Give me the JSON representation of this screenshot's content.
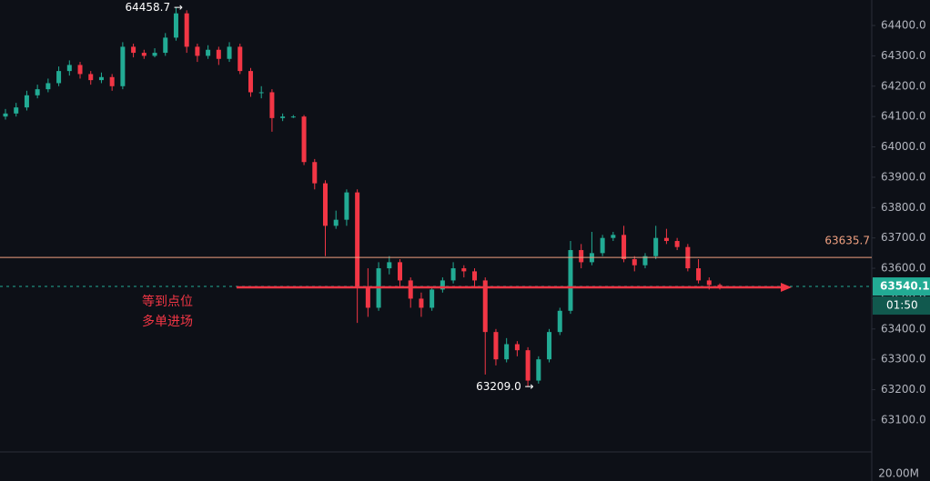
{
  "chart_data": {
    "type": "candlestick",
    "up_color": "#22ab94",
    "down_color": "#f23645",
    "grid": false,
    "ylim": [
      62995,
      64484
    ],
    "yticks": [
      {
        "value": 64400,
        "label": "64400.0"
      },
      {
        "value": 64300,
        "label": "64300.0"
      },
      {
        "value": 64200,
        "label": "64200.0"
      },
      {
        "value": 64100,
        "label": "64100.0"
      },
      {
        "value": 64000,
        "label": "64000.0"
      },
      {
        "value": 63900,
        "label": "63900.0"
      },
      {
        "value": 63800,
        "label": "63800.0"
      },
      {
        "value": 63700,
        "label": "63700.0"
      },
      {
        "value": 63600,
        "label": "63600.0"
      },
      {
        "value": 63500,
        "label": "63500.0"
      },
      {
        "value": 63400,
        "label": "63400.0"
      },
      {
        "value": 63300,
        "label": "63300.0"
      },
      {
        "value": 63200,
        "label": "63200.0"
      },
      {
        "value": 63100,
        "label": "63100.0"
      }
    ],
    "candles": [
      [
        64100,
        64125,
        64090,
        64110
      ],
      [
        64110,
        64145,
        64100,
        64130
      ],
      [
        64130,
        64185,
        64120,
        64170
      ],
      [
        64170,
        64205,
        64160,
        64190
      ],
      [
        64190,
        64225,
        64180,
        64210
      ],
      [
        64210,
        64265,
        64200,
        64250
      ],
      [
        64250,
        64285,
        64235,
        64270
      ],
      [
        64270,
        64280,
        64225,
        64240
      ],
      [
        64240,
        64250,
        64205,
        64220
      ],
      [
        64220,
        64245,
        64210,
        64230
      ],
      [
        64230,
        64240,
        64185,
        64200
      ],
      [
        64200,
        64345,
        64190,
        64330
      ],
      [
        64330,
        64340,
        64295,
        64310
      ],
      [
        64310,
        64320,
        64290,
        64300
      ],
      [
        64300,
        64325,
        64295,
        64310
      ],
      [
        64310,
        64375,
        64300,
        64360
      ],
      [
        64360,
        64458.7,
        64350,
        64440
      ],
      [
        64440,
        64450,
        64310,
        64330
      ],
      [
        64330,
        64340,
        64280,
        64300
      ],
      [
        64300,
        64335,
        64290,
        64320
      ],
      [
        64320,
        64330,
        64270,
        64290
      ],
      [
        64290,
        64345,
        64280,
        64330
      ],
      [
        64330,
        64340,
        64240,
        64250
      ],
      [
        64250,
        64260,
        64165,
        64180
      ],
      [
        64180,
        64200,
        64160,
        64180
      ],
      [
        64180,
        64190,
        64050,
        64095
      ],
      [
        64095,
        64110,
        64085,
        64100
      ],
      [
        64100,
        64105,
        64095,
        64100
      ],
      [
        64100,
        64105,
        63940,
        63950
      ],
      [
        63950,
        63960,
        63860,
        63880
      ],
      [
        63880,
        63890,
        63640,
        63740
      ],
      [
        63740,
        63790,
        63730,
        63760
      ],
      [
        63760,
        63860,
        63740,
        63850
      ],
      [
        63850,
        63860,
        63420,
        63540
      ],
      [
        63540,
        63600,
        63440,
        63470
      ],
      [
        63470,
        63620,
        63460,
        63600
      ],
      [
        63600,
        63640,
        63580,
        63620
      ],
      [
        63620,
        63630,
        63540,
        63560
      ],
      [
        63560,
        63570,
        63470,
        63500
      ],
      [
        63500,
        63520,
        63440,
        63470
      ],
      [
        63470,
        63540,
        63460,
        63530
      ],
      [
        63530,
        63570,
        63520,
        63560
      ],
      [
        63560,
        63620,
        63550,
        63600
      ],
      [
        63600,
        63610,
        63570,
        63590
      ],
      [
        63590,
        63600,
        63540,
        63560
      ],
      [
        63560,
        63570,
        63250,
        63390
      ],
      [
        63390,
        63400,
        63280,
        63300
      ],
      [
        63300,
        63370,
        63290,
        63350
      ],
      [
        63350,
        63360,
        63310,
        63330
      ],
      [
        63330,
        63340,
        63209,
        63230
      ],
      [
        63230,
        63310,
        63220,
        63300
      ],
      [
        63300,
        63400,
        63290,
        63390
      ],
      [
        63390,
        63470,
        63380,
        63460
      ],
      [
        63460,
        63690,
        63450,
        63660
      ],
      [
        63660,
        63680,
        63600,
        63620
      ],
      [
        63620,
        63720,
        63610,
        63650
      ],
      [
        63650,
        63710,
        63640,
        63700
      ],
      [
        63700,
        63720,
        63690,
        63710
      ],
      [
        63710,
        63740,
        63620,
        63630
      ],
      [
        63630,
        63640,
        63590,
        63610
      ],
      [
        63610,
        63650,
        63600,
        63640
      ],
      [
        63640,
        63740,
        63630,
        63700
      ],
      [
        63700,
        63730,
        63680,
        63690
      ],
      [
        63690,
        63700,
        63660,
        63670
      ],
      [
        63670,
        63680,
        63590,
        63600
      ],
      [
        63600,
        63630,
        63550,
        63560
      ],
      [
        63560,
        63570,
        63530,
        63545
      ],
      [
        63545,
        63550,
        63530,
        63540
      ]
    ],
    "high_label": {
      "value": 64458.7,
      "label": "64458.7 →"
    },
    "low_label": {
      "value": 63209.0,
      "label": "63209.0 →"
    },
    "level": {
      "value": 63635.7,
      "label": "63635.7",
      "color": "#f0a080"
    },
    "last_price": {
      "value": 63540.1,
      "label": "63540.1",
      "countdown": "01:50"
    },
    "note": [
      "等到点位",
      "多单进场"
    ],
    "volume_label": "20.00M"
  }
}
